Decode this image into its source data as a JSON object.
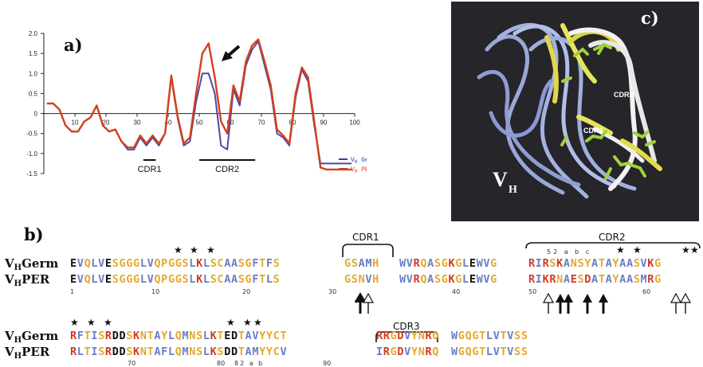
{
  "panels": {
    "a_label": "a)",
    "b_label": "b)",
    "c_label": "c)"
  },
  "chart_data": {
    "type": "line",
    "title": "",
    "xlabel": "",
    "ylabel": "",
    "xlim": [
      0,
      100
    ],
    "ylim": [
      -1.5,
      2.0
    ],
    "xticks": [
      "10",
      "20",
      "30",
      "40",
      "50",
      "60",
      "70",
      "80",
      "90",
      "100"
    ],
    "yticks": [
      "2.0",
      "1.5",
      "1.0",
      "0.5",
      "0",
      "-0.5",
      "-1.0",
      "-1.5"
    ],
    "grid": false,
    "legend_position": "bottom-right",
    "series": [
      {
        "name": "VH Germ",
        "color": "#4a4aa8",
        "x": [
          1,
          3,
          5,
          7,
          9,
          11,
          13,
          15,
          17,
          19,
          21,
          23,
          25,
          27,
          29,
          31,
          33,
          35,
          37,
          39,
          41,
          43,
          45,
          47,
          49,
          51,
          53,
          55,
          57,
          59,
          61,
          63,
          65,
          67,
          69,
          71,
          73,
          75,
          77,
          79,
          81,
          83,
          85,
          87,
          89,
          91,
          93,
          95,
          97,
          99
        ],
        "y": [
          0.25,
          0.25,
          0.1,
          -0.3,
          -0.45,
          -0.45,
          -0.2,
          -0.1,
          0.2,
          -0.3,
          -0.45,
          -0.4,
          -0.7,
          -0.9,
          -0.9,
          -0.6,
          -0.8,
          -0.6,
          -0.8,
          -0.5,
          0.9,
          -0.1,
          -0.8,
          -0.7,
          0.3,
          1.0,
          1.0,
          0.5,
          -0.8,
          -0.9,
          0.6,
          0.2,
          1.2,
          1.6,
          1.8,
          1.2,
          0.6,
          -0.5,
          -0.6,
          -0.8,
          0.4,
          1.1,
          0.8,
          -0.3,
          -1.25,
          -1.25,
          -1.25,
          -1.25,
          -1.25,
          -1.25
        ]
      },
      {
        "name": "VH PER",
        "color": "#d4401a",
        "x": [
          1,
          3,
          5,
          7,
          9,
          11,
          13,
          15,
          17,
          19,
          21,
          23,
          25,
          27,
          29,
          31,
          33,
          35,
          37,
          39,
          41,
          43,
          45,
          47,
          49,
          51,
          53,
          55,
          57,
          59,
          61,
          63,
          65,
          67,
          69,
          71,
          73,
          75,
          77,
          79,
          81,
          83,
          85,
          87,
          89,
          91,
          93,
          95,
          97,
          99
        ],
        "y": [
          0.25,
          0.25,
          0.1,
          -0.3,
          -0.45,
          -0.45,
          -0.2,
          -0.1,
          0.2,
          -0.3,
          -0.45,
          -0.4,
          -0.7,
          -0.85,
          -0.85,
          -0.55,
          -0.75,
          -0.55,
          -0.75,
          -0.5,
          0.95,
          -0.05,
          -0.75,
          -0.6,
          0.5,
          1.5,
          1.75,
          0.9,
          -0.2,
          -0.5,
          0.7,
          0.3,
          1.3,
          1.7,
          1.85,
          1.3,
          0.7,
          -0.4,
          -0.55,
          -0.75,
          0.5,
          1.15,
          0.9,
          -0.2,
          -1.35,
          -1.4,
          -1.4,
          -1.4,
          -1.4,
          -1.4
        ]
      }
    ],
    "legend": [
      {
        "prefix": "V",
        "sub": "H",
        "text": " Germ",
        "color": "#3c3ca0"
      },
      {
        "prefix": "V",
        "sub": "H",
        "text": " PER",
        "color": "#d4401a"
      }
    ],
    "annotations": [
      {
        "text": "CDR1",
        "x_range": [
          32,
          36
        ]
      },
      {
        "text": "CDR2",
        "x_range": [
          50,
          68
        ]
      }
    ]
  },
  "structure": {
    "vh_label_main": "V",
    "vh_label_sub": "H",
    "cdr1_label": "CDR1",
    "cdr2_label": "CDR2"
  },
  "alignment": {
    "row_labels": {
      "germ_prefix": "V",
      "germ_sub": "H",
      "germ_name": "Germ",
      "per_prefix": "V",
      "per_sub": "H",
      "per_name": "PER"
    },
    "cdr_labels": {
      "cdr1": "CDR1",
      "cdr2": "CDR2",
      "cdr3": "CDR3"
    },
    "block1": {
      "germ_fr1": "EVQLVESGGGLVQPGGSLKLSCAASGFTFS",
      "germ_cdr1": "GSAMH",
      "germ_fr2": "WVRQASGKGLEWVG",
      "germ_cdr2": "RIRSKANSYATAYAASVKG",
      "per_fr1": "EVQLVESGGGLVQPGGSLKLSCAASGFTLS",
      "per_cdr1": "GSNVH",
      "per_fr2": "WVRQASGKGLEWVG",
      "per_cdr2": "RIKRNAESDATAYAASMRG",
      "numbers": [
        "1",
        "10",
        "20",
        "30",
        "40",
        "50",
        "60"
      ],
      "insertion_labels": "52 a b c"
    },
    "block2": {
      "germ_fr3": "RFTISRDDSKNTAYLQMNSLKTEDTAVYYCT",
      "germ_cdr3": "RRGDVYNRQ",
      "germ_fr4": "WGQGTLVTVSS",
      "per_fr3": "RLTISRDDSKNTAFLQMNSLKSDDTAMYYCV",
      "per_cdr3": "IRGDVYNRQ",
      "per_fr4": "WGQGTLVTVSS",
      "numbers": [
        "70",
        "80",
        "82 a b",
        "90"
      ]
    }
  }
}
